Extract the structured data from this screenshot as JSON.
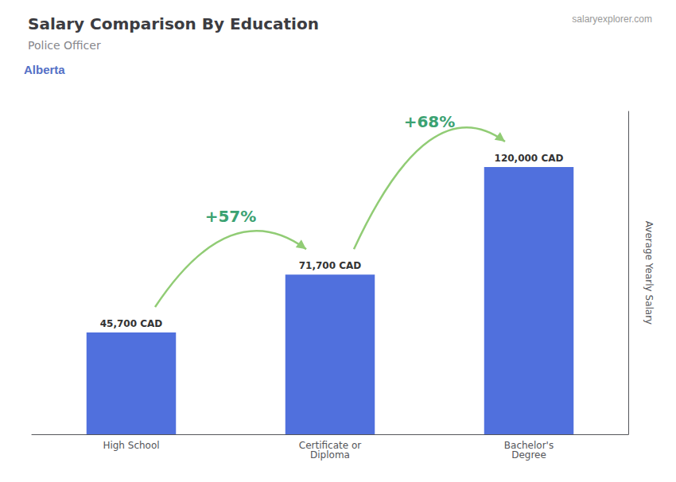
{
  "chart_data": {
    "type": "bar",
    "title": "Salary Comparison By Education",
    "subtitle": "Police Officer",
    "categories": [
      "High School",
      "Certificate or\nDiploma",
      "Bachelor's\nDegree"
    ],
    "values": [
      45700,
      71700,
      120000
    ],
    "value_labels": [
      "45,700 CAD",
      "71,700 CAD",
      "120,000 CAD"
    ],
    "data_labels": true,
    "ylabel": "Average Yearly Salary",
    "ylim": [
      0,
      145000
    ],
    "tick_labels": "x",
    "grid": false,
    "annotations": [
      {
        "text": "Alberta"
      },
      {
        "text": "salaryexplorer.com"
      },
      {
        "text": "+57%",
        "from": "High School",
        "to": "Certificate or\nDiploma"
      },
      {
        "text": "+68%",
        "from": "Certificate or\nDiploma",
        "to": "Bachelor's\nDegree"
      }
    ]
  }
}
